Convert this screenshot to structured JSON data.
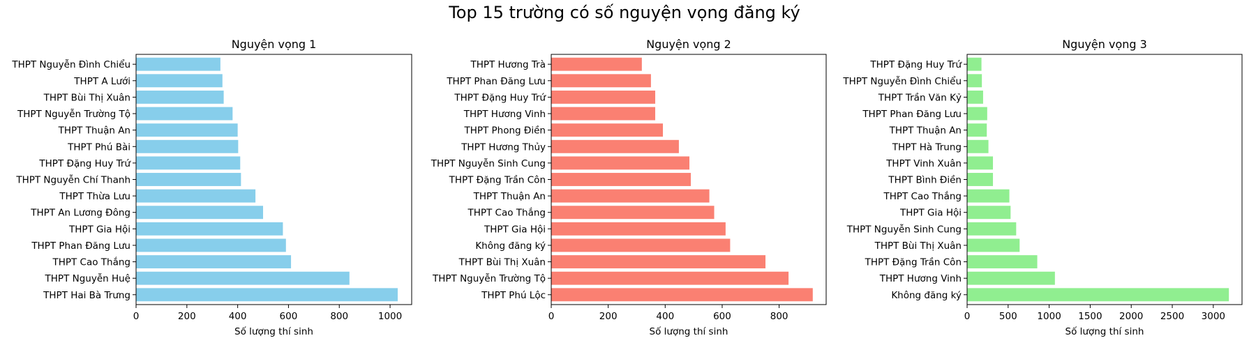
{
  "suptitle": "Top 15 trường có số nguyện vọng đăng ký",
  "chart_data": [
    {
      "type": "bar",
      "orientation": "horizontal",
      "title": "Nguyện vọng 1",
      "xlabel": "Số lượng thí sinh",
      "ylabel": "",
      "color": "#87CEEB",
      "xlim": [
        0,
        1085
      ],
      "xticks": [
        0,
        200,
        400,
        600,
        800,
        1000
      ],
      "categories": [
        "THPT Hai Bà Trưng",
        "THPT Nguyễn Huệ",
        "THPT Cao Thắng",
        "THPT Phan Đăng Lưu",
        "THPT Gia Hội",
        "THPT An Lương Đông",
        "THPT Thừa Lưu",
        "THPT Nguyễn Chí Thanh",
        "THPT Đặng Huy Trứ",
        "THPT Phú Bài",
        "THPT Thuận An",
        "THPT Nguyễn Trường Tộ",
        "THPT Bùi Thị Xuân",
        "THPT A Lưới",
        "THPT Nguyễn Đình Chiểu"
      ],
      "values": [
        1030,
        840,
        610,
        590,
        578,
        500,
        470,
        413,
        410,
        402,
        400,
        380,
        345,
        340,
        332
      ]
    },
    {
      "type": "bar",
      "orientation": "horizontal",
      "title": "Nguyện vọng 2",
      "xlabel": "Số lượng thí sinh",
      "ylabel": "",
      "color": "#FA8072",
      "xlim": [
        0,
        965
      ],
      "xticks": [
        0,
        200,
        400,
        600,
        800
      ],
      "categories": [
        "THPT Phú Lộc",
        "THPT Nguyễn Trường Tộ",
        "THPT Bùi Thị Xuân",
        "Không đăng ký",
        "THPT Gia Hội",
        "THPT Cao Thắng",
        "THPT Thuận An",
        "THPT Đặng Trần Côn",
        "THPT Nguyễn Sinh Cung",
        "THPT Hương Thủy",
        "THPT Phong Điền",
        "THPT Hương Vinh",
        "THPT Đặng Huy Trứ",
        "THPT Phan Đăng Lưu",
        "THPT Hương Trà"
      ],
      "values": [
        918,
        833,
        752,
        628,
        612,
        572,
        555,
        490,
        485,
        448,
        392,
        365,
        365,
        350,
        318
      ]
    },
    {
      "type": "bar",
      "orientation": "horizontal",
      "title": "Nguyện vọng 3",
      "xlabel": "Số lượng thí sinh",
      "ylabel": "",
      "color": "#90EE90",
      "xlim": [
        0,
        3350
      ],
      "xticks": [
        0,
        500,
        1000,
        1500,
        2000,
        2500,
        3000
      ],
      "categories": [
        "Không đăng ký",
        "THPT Hương Vinh",
        "THPT Đặng Trần Côn",
        "THPT Bùi Thị Xuân",
        "THPT Nguyễn Sinh Cung",
        "THPT Gia Hội",
        "THPT Cao Thắng",
        "THPT Bình Điền",
        "THPT Vinh Xuân",
        "THPT Hà Trung",
        "THPT Thuận An",
        "THPT Phan Đăng Lưu",
        "THPT Trần Văn Kỷ",
        "THPT Nguyễn Đình Chiểu",
        "THPT Đặng Huy Trứ"
      ],
      "values": [
        3190,
        1070,
        855,
        640,
        598,
        530,
        515,
        315,
        315,
        260,
        240,
        245,
        195,
        180,
        175
      ]
    }
  ]
}
